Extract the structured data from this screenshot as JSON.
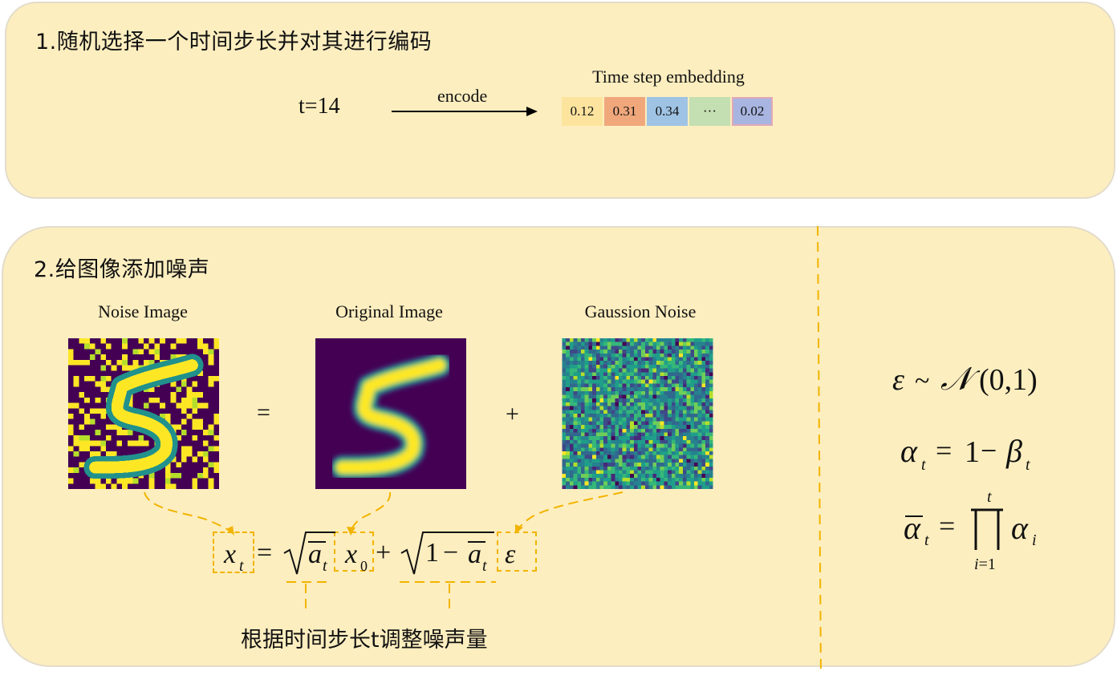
{
  "section1": {
    "heading": "1.随机选择一个时间步长并对其进行编码",
    "timestep": "t=14",
    "arrow_label": "encode",
    "embedding_title": "Time step embedding",
    "embedding_cells": [
      {
        "value": "0.12",
        "color": "#fde49e"
      },
      {
        "value": "0.31",
        "color": "#f0a77c"
      },
      {
        "value": "0.34",
        "color": "#9fc3e4"
      },
      {
        "value": "···",
        "color": "#c4dfb1"
      },
      {
        "value": "0.02",
        "color": "#a8b5e0"
      }
    ]
  },
  "section2": {
    "heading": "2.给图像添加噪声",
    "noise_image_label": "Noise Image",
    "original_image_label": "Original Image",
    "gaussian_noise_label": "Gaussion Noise",
    "equals_sign": "=",
    "plus_sign": "+",
    "caption": "根据时间步长t调整噪声量"
  },
  "colors": {
    "panel": "#fdeebf",
    "accent": "#f2b400",
    "viridis_dark": "#440154",
    "viridis_yellow": "#fde725"
  }
}
